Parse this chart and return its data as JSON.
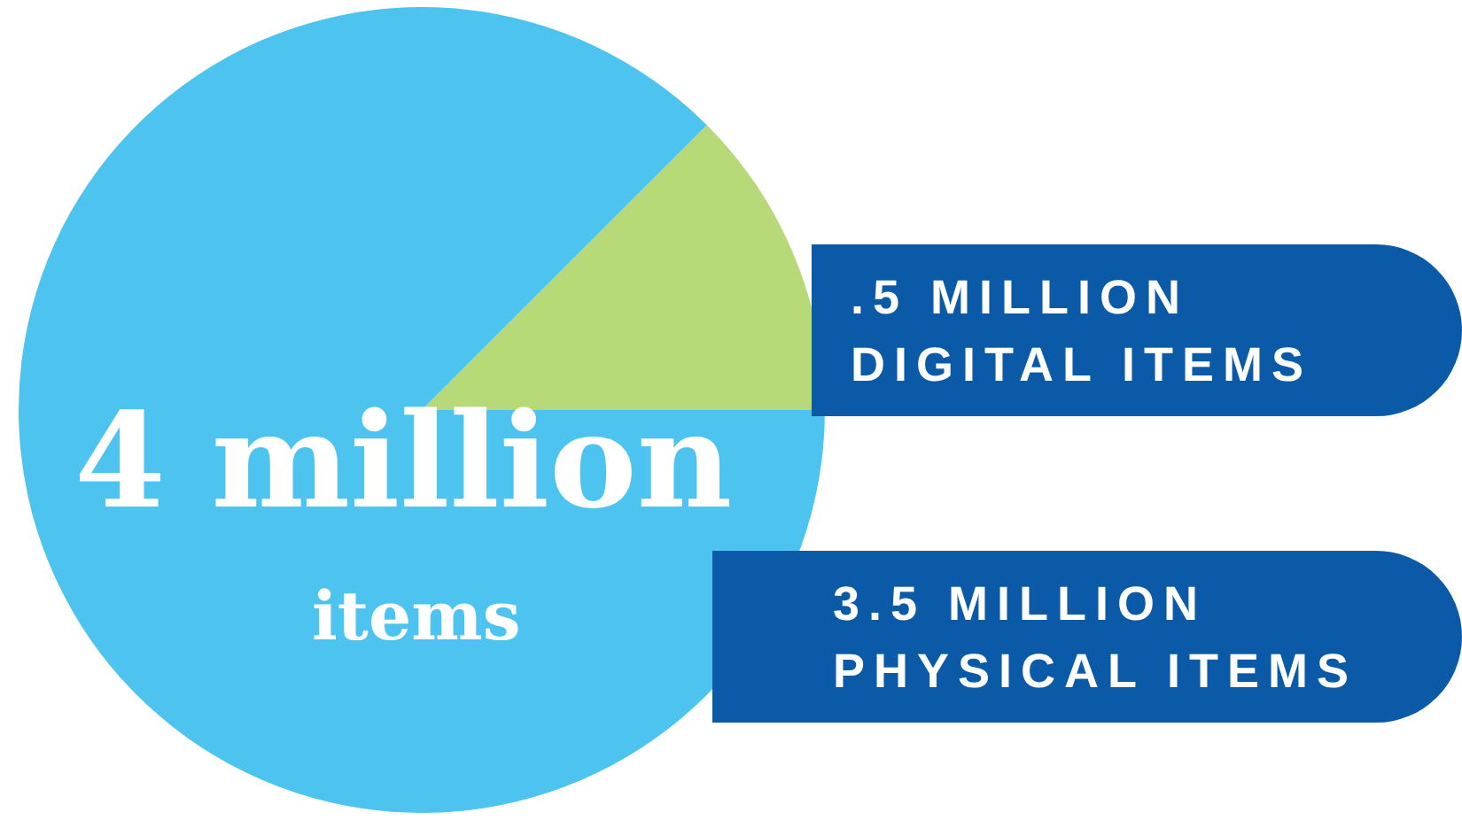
{
  "chart_data": {
    "type": "pie",
    "categories": [
      ".5 MILLION\nDIGITAL ITEMS",
      "3.5 MILLION\nPHYSICAL ITEMS"
    ],
    "values": [
      0.5,
      3.5
    ],
    "colors": [
      "#b8d977",
      "#4dc4f0"
    ],
    "annotations": [
      "4 million",
      "items"
    ],
    "legend": false
  }
}
